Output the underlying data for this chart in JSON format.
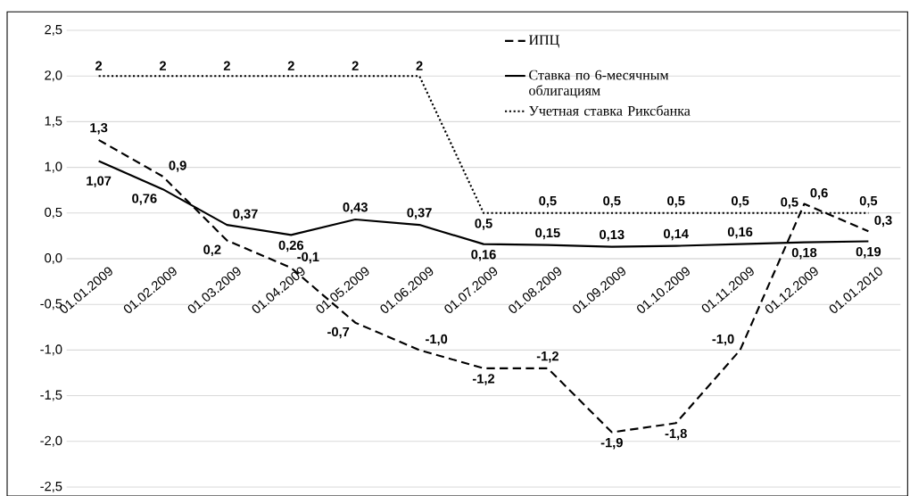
{
  "chart_data": {
    "type": "line",
    "categories": [
      "01.01.2009",
      "01.02.2009",
      "01.03.2009",
      "01.04.2009",
      "01.05.2009",
      "01.06.2009",
      "01.07.2009",
      "01.08.2009",
      "01.09.2009",
      "01.10.2009",
      "01.11.2009",
      "01.12.2009",
      "01.01.2010"
    ],
    "series": [
      {
        "name": "ИПЦ",
        "color": "#000000",
        "line_style": "dashed",
        "values": [
          1.3,
          0.9,
          0.2,
          -0.1,
          -0.7,
          -1.0,
          -1.2,
          -1.2,
          -1.9,
          -1.8,
          -1.0,
          0.6,
          0.3
        ],
        "value_labels": [
          "1,3",
          "0,9",
          "0,2",
          "-0,1",
          "-0,7",
          "-1,0",
          "-1,2",
          "-1,2",
          "-1,9",
          "-1,8",
          "-1,0",
          "0,6",
          "0,3"
        ]
      },
      {
        "name": "Ставка по 6-месячным облигациям",
        "color": "#000000",
        "line_style": "solid",
        "values": [
          1.07,
          0.76,
          0.37,
          0.26,
          0.43,
          0.37,
          0.16,
          0.15,
          0.13,
          0.14,
          0.16,
          0.18,
          0.19
        ],
        "value_labels": [
          "1,07",
          "0,76",
          "0,37",
          "0,26",
          "0,43",
          "0,37",
          "0,16",
          "0,15",
          "0,13",
          "0,14",
          "0,16",
          "0,18",
          "0,19"
        ]
      },
      {
        "name": "Учетная ставка Риксбанка",
        "color": "#000000",
        "line_style": "dotted",
        "values": [
          2,
          2,
          2,
          2,
          2,
          2,
          0.5,
          0.5,
          0.5,
          0.5,
          0.5,
          0.5,
          0.5
        ],
        "value_labels": [
          "2",
          "2",
          "2",
          "2",
          "2",
          "2",
          "0,5",
          "0,5",
          "0,5",
          "0,5",
          "0,5",
          "0,5",
          "0,5"
        ]
      }
    ],
    "ylim": [
      -2.5,
      2.5
    ],
    "yticks": [
      {
        "value": -2.5,
        "label": "-2,5"
      },
      {
        "value": -2.0,
        "label": "-2,0"
      },
      {
        "value": -1.5,
        "label": "-1,5"
      },
      {
        "value": -1.0,
        "label": "-1,0"
      },
      {
        "value": -0.5,
        "label": "-0,5"
      },
      {
        "value": 0.0,
        "label": "0,0"
      },
      {
        "value": 0.5,
        "label": "0,5"
      },
      {
        "value": 1.0,
        "label": "1,0"
      },
      {
        "value": 1.5,
        "label": "1,5"
      },
      {
        "value": 2.0,
        "label": "2,0"
      },
      {
        "value": 2.5,
        "label": "2,5"
      }
    ],
    "grid": "y",
    "legend": "top right"
  }
}
